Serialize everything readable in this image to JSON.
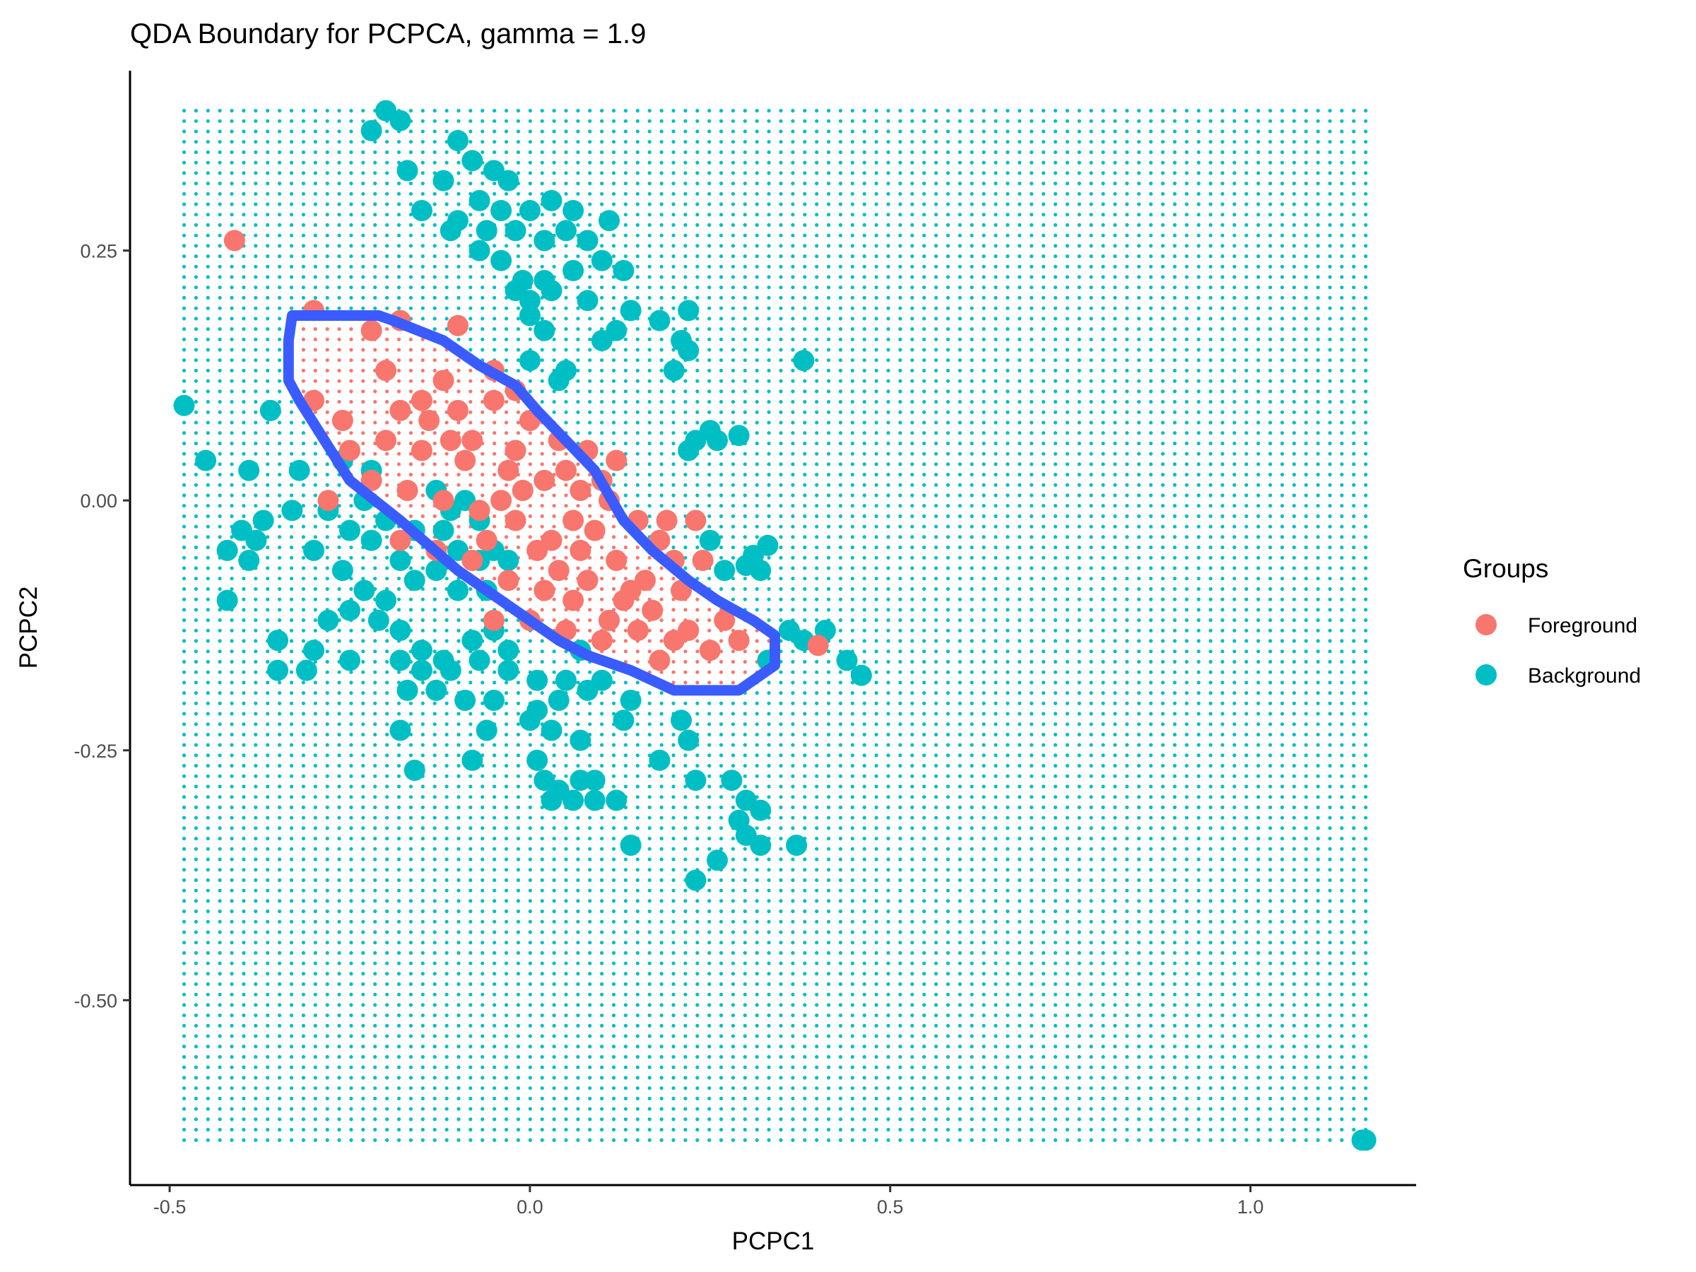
{
  "chart_data": {
    "type": "scatter",
    "title": "QDA Boundary for PCPCA, gamma = 1.9",
    "xlabel": "PCPC1",
    "ylabel": "PCPC2",
    "xlim": [
      -0.555,
      1.23
    ],
    "ylim": [
      -0.685,
      0.43
    ],
    "x_ticks": [
      {
        "value": -0.5,
        "label": "-0.5"
      },
      {
        "value": 0.0,
        "label": "0.0"
      },
      {
        "value": 0.5,
        "label": "0.5"
      },
      {
        "value": 1.0,
        "label": "1.0"
      }
    ],
    "y_ticks": [
      {
        "value": 0.25,
        "label": "0.25"
      },
      {
        "value": 0.0,
        "label": "0.00"
      },
      {
        "value": -0.25,
        "label": "-0.25"
      },
      {
        "value": -0.5,
        "label": "-0.50"
      }
    ],
    "grid": false,
    "legend": {
      "title": "Groups",
      "position": "right",
      "entries": [
        {
          "name": "Foreground",
          "color": "#F8766D"
        },
        {
          "name": "Background",
          "color": "#00BFC4"
        }
      ]
    },
    "colors": {
      "foreground": "#F8766D",
      "background": "#00BFC4",
      "boundary": "#3A5CFF"
    },
    "decision_grid": {
      "x_range": [
        -0.48,
        1.16
      ],
      "y_range": [
        -0.64,
        0.39
      ],
      "resolution": 100
    },
    "boundary_polygon": [
      [
        -0.33,
        0.185
      ],
      [
        -0.21,
        0.185
      ],
      [
        -0.19,
        0.18
      ],
      [
        -0.12,
        0.16
      ],
      [
        -0.07,
        0.135
      ],
      [
        -0.02,
        0.115
      ],
      [
        0.01,
        0.09
      ],
      [
        0.05,
        0.06
      ],
      [
        0.09,
        0.03
      ],
      [
        0.13,
        -0.02
      ],
      [
        0.17,
        -0.05
      ],
      [
        0.22,
        -0.08
      ],
      [
        0.26,
        -0.1
      ],
      [
        0.31,
        -0.12
      ],
      [
        0.34,
        -0.135
      ],
      [
        0.34,
        -0.165
      ],
      [
        0.29,
        -0.19
      ],
      [
        0.2,
        -0.19
      ],
      [
        0.14,
        -0.17
      ],
      [
        0.08,
        -0.155
      ],
      [
        0.04,
        -0.14
      ],
      [
        -0.04,
        -0.1
      ],
      [
        -0.1,
        -0.07
      ],
      [
        -0.18,
        -0.02
      ],
      [
        -0.25,
        0.02
      ],
      [
        -0.32,
        0.1
      ],
      [
        -0.335,
        0.12
      ],
      [
        -0.335,
        0.16
      ]
    ],
    "series": [
      {
        "name": "Foreground",
        "points": [
          [
            -0.41,
            0.26
          ],
          [
            -0.3,
            0.19
          ],
          [
            -0.22,
            0.17
          ],
          [
            -0.18,
            0.18
          ],
          [
            -0.1,
            0.175
          ],
          [
            -0.12,
            0.12
          ],
          [
            -0.05,
            0.13
          ],
          [
            -0.02,
            0.11
          ],
          [
            -0.2,
            0.13
          ],
          [
            -0.15,
            0.1
          ],
          [
            -0.1,
            0.09
          ],
          [
            -0.05,
            0.1
          ],
          [
            0.0,
            0.08
          ],
          [
            0.04,
            0.06
          ],
          [
            0.08,
            0.05
          ],
          [
            -0.25,
            0.05
          ],
          [
            -0.2,
            0.06
          ],
          [
            -0.15,
            0.05
          ],
          [
            -0.08,
            0.06
          ],
          [
            -0.02,
            0.05
          ],
          [
            0.02,
            0.02
          ],
          [
            0.07,
            0.01
          ],
          [
            0.11,
            0.0
          ],
          [
            0.15,
            -0.02
          ],
          [
            0.18,
            -0.04
          ],
          [
            -0.22,
            0.02
          ],
          [
            -0.17,
            0.01
          ],
          [
            -0.12,
            0.0
          ],
          [
            -0.07,
            -0.01
          ],
          [
            -0.02,
            -0.02
          ],
          [
            0.03,
            -0.04
          ],
          [
            0.07,
            -0.05
          ],
          [
            0.12,
            -0.06
          ],
          [
            0.16,
            -0.08
          ],
          [
            0.21,
            -0.09
          ],
          [
            -0.18,
            -0.04
          ],
          [
            -0.13,
            -0.05
          ],
          [
            -0.08,
            -0.06
          ],
          [
            -0.03,
            -0.08
          ],
          [
            0.02,
            -0.09
          ],
          [
            0.06,
            -0.1
          ],
          [
            0.11,
            -0.12
          ],
          [
            0.15,
            -0.13
          ],
          [
            0.2,
            -0.14
          ],
          [
            0.25,
            -0.15
          ],
          [
            -0.05,
            -0.12
          ],
          [
            0.0,
            -0.12
          ],
          [
            0.05,
            -0.13
          ],
          [
            0.1,
            -0.14
          ],
          [
            0.18,
            -0.16
          ],
          [
            0.22,
            -0.13
          ],
          [
            0.27,
            -0.12
          ],
          [
            0.29,
            -0.14
          ],
          [
            0.13,
            -0.1
          ],
          [
            0.24,
            -0.06
          ],
          [
            0.19,
            -0.02
          ],
          [
            0.1,
            0.02
          ],
          [
            0.05,
            0.03
          ],
          [
            -0.01,
            0.01
          ],
          [
            -0.26,
            0.08
          ],
          [
            -0.3,
            0.1
          ],
          [
            -0.28,
            0.0
          ],
          [
            -0.09,
            0.04
          ],
          [
            -0.04,
            0.0
          ],
          [
            0.01,
            -0.05
          ],
          [
            0.04,
            -0.07
          ],
          [
            0.09,
            -0.03
          ],
          [
            0.14,
            -0.09
          ],
          [
            0.4,
            -0.145
          ],
          [
            -0.14,
            0.08
          ],
          [
            -0.11,
            0.06
          ],
          [
            -0.18,
            0.09
          ],
          [
            -0.03,
            0.03
          ],
          [
            0.08,
            -0.08
          ],
          [
            0.17,
            -0.11
          ],
          [
            0.23,
            -0.02
          ],
          [
            0.12,
            0.04
          ],
          [
            -0.06,
            -0.04
          ],
          [
            0.06,
            -0.02
          ],
          [
            0.2,
            -0.06
          ]
        ]
      },
      {
        "name": "Background",
        "points": [
          [
            -0.2,
            0.39
          ],
          [
            -0.22,
            0.37
          ],
          [
            -0.18,
            0.38
          ],
          [
            -0.1,
            0.36
          ],
          [
            -0.08,
            0.34
          ],
          [
            -0.05,
            0.33
          ],
          [
            -0.03,
            0.32
          ],
          [
            -0.17,
            0.33
          ],
          [
            -0.12,
            0.32
          ],
          [
            -0.07,
            0.3
          ],
          [
            -0.04,
            0.29
          ],
          [
            0.0,
            0.29
          ],
          [
            0.03,
            0.3
          ],
          [
            0.06,
            0.29
          ],
          [
            -0.1,
            0.28
          ],
          [
            -0.06,
            0.27
          ],
          [
            -0.02,
            0.27
          ],
          [
            0.02,
            0.26
          ],
          [
            0.05,
            0.27
          ],
          [
            0.08,
            0.26
          ],
          [
            0.11,
            0.28
          ],
          [
            0.1,
            0.24
          ],
          [
            0.06,
            0.23
          ],
          [
            0.02,
            0.22
          ],
          [
            -0.01,
            0.22
          ],
          [
            -0.04,
            0.24
          ],
          [
            -0.07,
            0.25
          ],
          [
            -0.11,
            0.27
          ],
          [
            -0.15,
            0.29
          ],
          [
            0.13,
            0.23
          ],
          [
            -0.02,
            0.21
          ],
          [
            0.0,
            0.2
          ],
          [
            0.03,
            0.21
          ],
          [
            0.08,
            0.2
          ],
          [
            0.0,
            0.185
          ],
          [
            0.02,
            0.17
          ],
          [
            0.14,
            0.19
          ],
          [
            0.18,
            0.18
          ],
          [
            0.22,
            0.19
          ],
          [
            0.21,
            0.16
          ],
          [
            0.2,
            0.13
          ],
          [
            0.22,
            0.15
          ],
          [
            0.1,
            0.16
          ],
          [
            0.12,
            0.17
          ],
          [
            0.0,
            0.14
          ],
          [
            0.05,
            0.13
          ],
          [
            0.04,
            0.12
          ],
          [
            0.38,
            0.14
          ],
          [
            -0.48,
            0.095
          ],
          [
            -0.36,
            0.09
          ],
          [
            -0.45,
            0.04
          ],
          [
            -0.39,
            0.03
          ],
          [
            -0.32,
            0.03
          ],
          [
            -0.26,
            0.04
          ],
          [
            -0.22,
            0.03
          ],
          [
            -0.28,
            -0.01
          ],
          [
            -0.23,
            0.0
          ],
          [
            -0.2,
            -0.02
          ],
          [
            -0.33,
            -0.01
          ],
          [
            -0.37,
            -0.02
          ],
          [
            -0.4,
            -0.03
          ],
          [
            -0.38,
            -0.04
          ],
          [
            -0.42,
            -0.05
          ],
          [
            -0.39,
            -0.06
          ],
          [
            -0.3,
            -0.05
          ],
          [
            -0.25,
            -0.03
          ],
          [
            -0.22,
            -0.04
          ],
          [
            -0.18,
            -0.06
          ],
          [
            -0.16,
            -0.03
          ],
          [
            -0.12,
            -0.03
          ],
          [
            -0.26,
            -0.07
          ],
          [
            -0.23,
            -0.09
          ],
          [
            -0.2,
            -0.1
          ],
          [
            -0.16,
            -0.08
          ],
          [
            -0.13,
            -0.07
          ],
          [
            -0.1,
            -0.05
          ],
          [
            -0.07,
            -0.06
          ],
          [
            -0.42,
            -0.1
          ],
          [
            -0.28,
            -0.12
          ],
          [
            -0.25,
            -0.11
          ],
          [
            -0.21,
            -0.12
          ],
          [
            -0.18,
            -0.13
          ],
          [
            -0.15,
            -0.15
          ],
          [
            -0.12,
            -0.16
          ],
          [
            -0.08,
            -0.14
          ],
          [
            -0.05,
            -0.13
          ],
          [
            -0.03,
            -0.15
          ],
          [
            -0.35,
            -0.14
          ],
          [
            -0.3,
            -0.15
          ],
          [
            -0.25,
            -0.16
          ],
          [
            -0.18,
            -0.16
          ],
          [
            -0.15,
            -0.17
          ],
          [
            -0.11,
            -0.17
          ],
          [
            -0.07,
            -0.16
          ],
          [
            -0.03,
            -0.17
          ],
          [
            0.01,
            -0.18
          ],
          [
            0.05,
            -0.18
          ],
          [
            0.1,
            -0.18
          ],
          [
            -0.35,
            -0.17
          ],
          [
            -0.31,
            -0.17
          ],
          [
            -0.17,
            -0.19
          ],
          [
            -0.13,
            -0.19
          ],
          [
            -0.09,
            -0.2
          ],
          [
            -0.05,
            -0.2
          ],
          [
            0.01,
            -0.21
          ],
          [
            0.04,
            -0.2
          ],
          [
            0.08,
            -0.19
          ],
          [
            0.14,
            -0.2
          ],
          [
            -0.18,
            -0.23
          ],
          [
            -0.06,
            -0.23
          ],
          [
            0.0,
            -0.22
          ],
          [
            0.03,
            -0.23
          ],
          [
            0.07,
            -0.24
          ],
          [
            0.13,
            -0.22
          ],
          [
            0.21,
            -0.22
          ],
          [
            -0.08,
            -0.26
          ],
          [
            -0.16,
            -0.27
          ],
          [
            0.01,
            -0.26
          ],
          [
            0.02,
            -0.28
          ],
          [
            0.04,
            -0.29
          ],
          [
            0.07,
            -0.28
          ],
          [
            0.09,
            -0.28
          ],
          [
            0.03,
            -0.3
          ],
          [
            0.06,
            -0.3
          ],
          [
            0.09,
            -0.3
          ],
          [
            0.12,
            -0.3
          ],
          [
            0.18,
            -0.26
          ],
          [
            0.23,
            -0.28
          ],
          [
            0.28,
            -0.28
          ],
          [
            0.3,
            -0.3
          ],
          [
            0.32,
            -0.31
          ],
          [
            0.29,
            -0.32
          ],
          [
            0.3,
            -0.335
          ],
          [
            0.32,
            -0.345
          ],
          [
            0.37,
            -0.345
          ],
          [
            0.14,
            -0.345
          ],
          [
            0.26,
            -0.36
          ],
          [
            0.23,
            -0.38
          ],
          [
            0.22,
            -0.24
          ],
          [
            0.27,
            -0.07
          ],
          [
            0.3,
            -0.065
          ],
          [
            0.25,
            0.07
          ],
          [
            0.23,
            0.06
          ],
          [
            0.22,
            0.05
          ],
          [
            0.26,
            0.06
          ],
          [
            0.29,
            0.065
          ],
          [
            0.33,
            -0.045
          ],
          [
            0.31,
            -0.055
          ],
          [
            0.32,
            -0.07
          ],
          [
            0.36,
            -0.13
          ],
          [
            0.38,
            -0.14
          ],
          [
            0.41,
            -0.13
          ],
          [
            0.44,
            -0.16
          ],
          [
            0.46,
            -0.175
          ],
          [
            0.33,
            -0.16
          ],
          [
            0.25,
            -0.04
          ],
          [
            -0.13,
            0.01
          ],
          [
            -0.11,
            -0.01
          ],
          [
            -0.09,
            0.0
          ],
          [
            -0.07,
            -0.02
          ],
          [
            -0.05,
            -0.05
          ],
          [
            -0.03,
            -0.06
          ],
          [
            0.11,
            -0.12
          ],
          [
            0.07,
            -0.15
          ],
          [
            -0.1,
            -0.09
          ],
          [
            -0.06,
            -0.09
          ],
          [
            1.16,
            -0.64
          ],
          [
            1.155,
            -0.64
          ]
        ]
      }
    ]
  }
}
